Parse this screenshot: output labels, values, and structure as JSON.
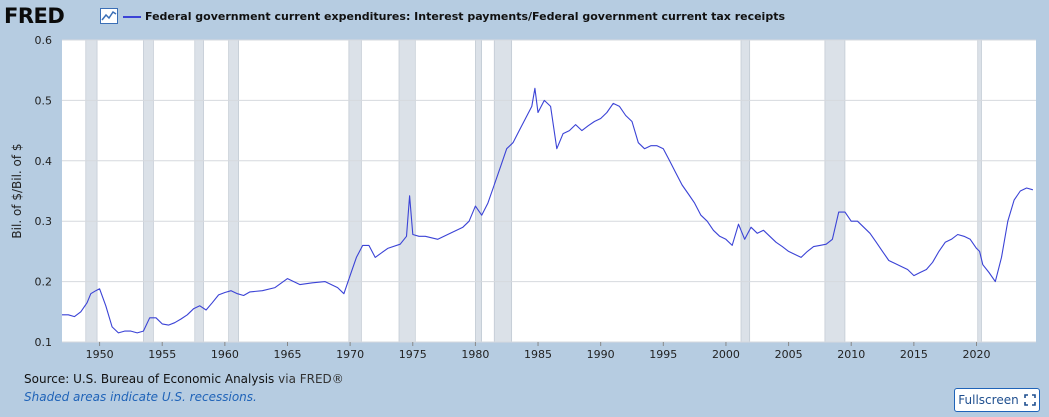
{
  "logo_text": "FRED",
  "legend_label": "Federal government current expenditures: Interest payments/Federal government current tax receipts",
  "source": {
    "prefix": "Source: U.S. Bureau of Economic Analysis",
    "via": " via FRED®"
  },
  "recession_note": "Shaded areas indicate U.S. recessions.",
  "fullscreen_label": "Fullscreen",
  "colors": {
    "line": "#3b43d6",
    "recession": "#dbe1e8",
    "background": "#b6cce1"
  },
  "icons": {
    "logo_chart": "line-chart-icon",
    "fullscreen": "expand-icon"
  },
  "chart_data": {
    "type": "line",
    "title": "Federal government current expenditures: Interest payments/Federal government current tax receipts",
    "ylabel": "Bil. of $/Bil. of $",
    "xlabel": "",
    "xlim": [
      1947,
      2024.75
    ],
    "ylim": [
      0.1,
      0.6
    ],
    "grid": true,
    "yticks": [
      "0.1",
      "0.2",
      "0.3",
      "0.4",
      "0.5",
      "0.6"
    ],
    "xticks": [
      "1950",
      "1955",
      "1960",
      "1965",
      "1970",
      "1975",
      "1980",
      "1985",
      "1990",
      "1995",
      "2000",
      "2005",
      "2010",
      "2015",
      "2020"
    ],
    "recessions": [
      [
        1948.9,
        1949.8
      ],
      [
        1953.5,
        1954.3
      ],
      [
        1957.6,
        1958.3
      ],
      [
        1960.3,
        1961.1
      ],
      [
        1969.9,
        1970.9
      ],
      [
        1973.9,
        1975.2
      ],
      [
        1980.0,
        1980.5
      ],
      [
        1981.5,
        1982.9
      ],
      [
        2001.2,
        2001.9
      ],
      [
        2007.9,
        2009.5
      ],
      [
        2020.1,
        2020.4
      ]
    ],
    "series": [
      {
        "name": "Federal government current expenditures: Interest payments/Federal government current tax receipts",
        "x": [
          1947.0,
          1947.5,
          1948.0,
          1948.5,
          1949.0,
          1949.3,
          1949.7,
          1950.0,
          1950.5,
          1951.0,
          1951.5,
          1952.0,
          1952.5,
          1953.0,
          1953.5,
          1954.0,
          1954.5,
          1955.0,
          1955.5,
          1956.0,
          1956.5,
          1957.0,
          1957.5,
          1958.0,
          1958.5,
          1959.0,
          1959.5,
          1960.0,
          1960.5,
          1961.0,
          1961.5,
          1962.0,
          1963.0,
          1964.0,
          1965.0,
          1966.0,
          1967.0,
          1968.0,
          1969.0,
          1969.5,
          1970.0,
          1970.5,
          1971.0,
          1971.5,
          1972.0,
          1973.0,
          1974.0,
          1974.5,
          1974.75,
          1975.0,
          1975.5,
          1976.0,
          1977.0,
          1978.0,
          1979.0,
          1979.5,
          1980.0,
          1980.5,
          1981.0,
          1981.5,
          1982.0,
          1982.5,
          1983.0,
          1983.5,
          1984.0,
          1984.5,
          1984.75,
          1985.0,
          1985.5,
          1986.0,
          1986.5,
          1987.0,
          1987.5,
          1988.0,
          1988.5,
          1989.0,
          1989.5,
          1990.0,
          1990.5,
          1991.0,
          1991.5,
          1992.0,
          1992.5,
          1993.0,
          1993.5,
          1994.0,
          1994.5,
          1995.0,
          1995.5,
          1996.0,
          1996.5,
          1997.0,
          1997.5,
          1998.0,
          1998.5,
          1999.0,
          1999.5,
          2000.0,
          2000.5,
          2001.0,
          2001.5,
          2002.0,
          2002.5,
          2003.0,
          2003.5,
          2004.0,
          2004.5,
          2005.0,
          2005.5,
          2006.0,
          2006.5,
          2007.0,
          2007.5,
          2008.0,
          2008.5,
          2009.0,
          2009.5,
          2010.0,
          2010.5,
          2011.0,
          2011.5,
          2012.0,
          2012.5,
          2013.0,
          2013.5,
          2014.0,
          2014.5,
          2015.0,
          2015.5,
          2016.0,
          2016.5,
          2017.0,
          2017.5,
          2018.0,
          2018.5,
          2019.0,
          2019.5,
          2020.0,
          2020.25,
          2020.5,
          2021.0,
          2021.5,
          2022.0,
          2022.5,
          2023.0,
          2023.5,
          2024.0,
          2024.5
        ],
        "values": [
          0.145,
          0.145,
          0.142,
          0.15,
          0.165,
          0.18,
          0.185,
          0.188,
          0.16,
          0.125,
          0.115,
          0.118,
          0.118,
          0.115,
          0.118,
          0.14,
          0.14,
          0.13,
          0.128,
          0.132,
          0.138,
          0.145,
          0.155,
          0.16,
          0.153,
          0.165,
          0.178,
          0.182,
          0.185,
          0.18,
          0.177,
          0.183,
          0.185,
          0.19,
          0.205,
          0.195,
          0.198,
          0.2,
          0.19,
          0.18,
          0.21,
          0.24,
          0.26,
          0.26,
          0.24,
          0.255,
          0.262,
          0.275,
          0.342,
          0.278,
          0.275,
          0.275,
          0.27,
          0.28,
          0.29,
          0.3,
          0.325,
          0.31,
          0.33,
          0.36,
          0.39,
          0.42,
          0.43,
          0.45,
          0.47,
          0.49,
          0.52,
          0.48,
          0.5,
          0.49,
          0.42,
          0.445,
          0.45,
          0.46,
          0.45,
          0.458,
          0.465,
          0.47,
          0.48,
          0.495,
          0.49,
          0.475,
          0.465,
          0.43,
          0.42,
          0.425,
          0.425,
          0.42,
          0.4,
          0.38,
          0.36,
          0.345,
          0.33,
          0.31,
          0.3,
          0.285,
          0.275,
          0.27,
          0.26,
          0.295,
          0.27,
          0.29,
          0.28,
          0.285,
          0.275,
          0.265,
          0.258,
          0.25,
          0.245,
          0.24,
          0.25,
          0.258,
          0.26,
          0.262,
          0.27,
          0.315,
          0.315,
          0.3,
          0.3,
          0.29,
          0.28,
          0.265,
          0.25,
          0.235,
          0.23,
          0.225,
          0.22,
          0.21,
          0.215,
          0.22,
          0.232,
          0.25,
          0.265,
          0.27,
          0.278,
          0.275,
          0.27,
          0.255,
          0.25,
          0.228,
          0.215,
          0.2,
          0.24,
          0.3,
          0.335,
          0.35,
          0.355,
          0.352
        ]
      }
    ]
  }
}
